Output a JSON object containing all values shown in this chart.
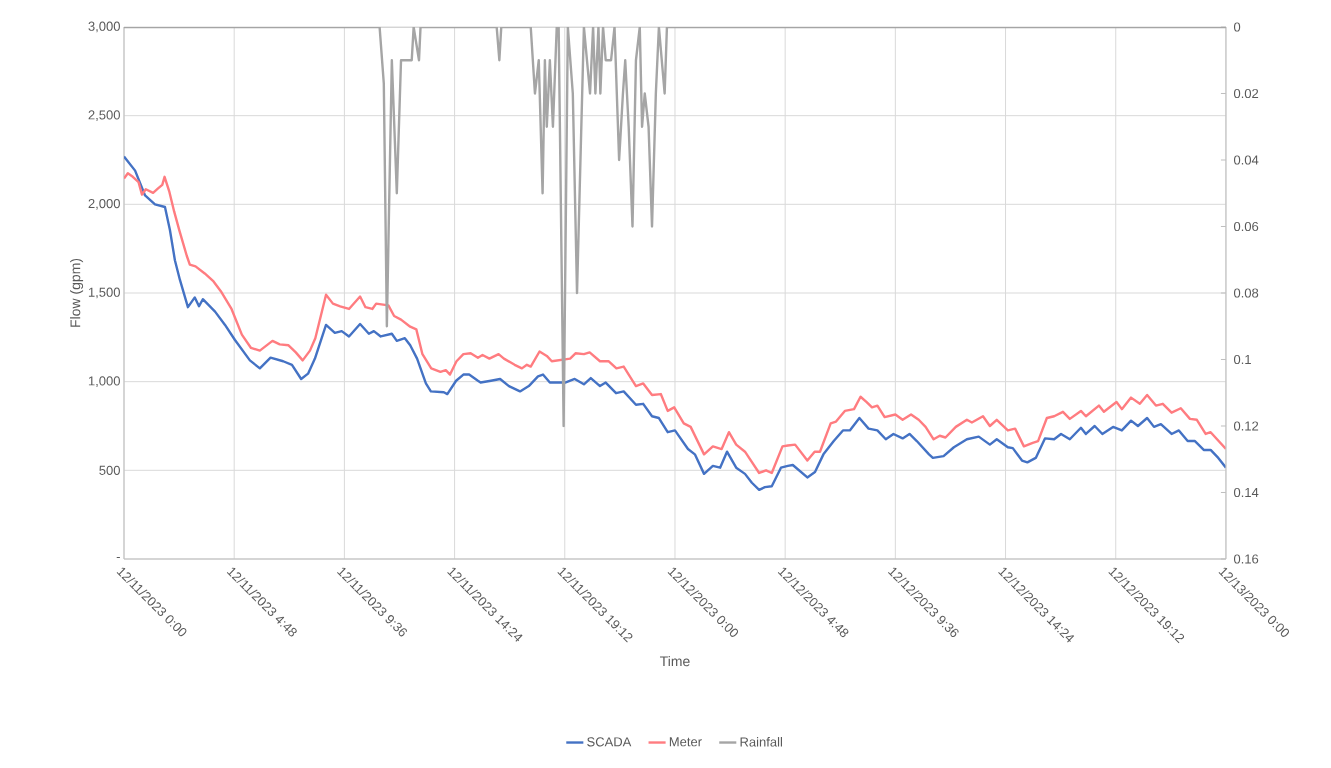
{
  "chart_data": {
    "type": "line",
    "xlabel": "Time",
    "ylabel": "Flow (gpm)",
    "xlim": [
      "2023-12-11T00:00",
      "2023-12-13T00:00"
    ],
    "xticks": [
      {
        "value": "2023-12-11T00:00",
        "label": "12/11/2023 0:00"
      },
      {
        "value": "2023-12-11T04:48",
        "label": "12/11/2023 4:48"
      },
      {
        "value": "2023-12-11T09:36",
        "label": "12/11/2023 9:36"
      },
      {
        "value": "2023-12-11T14:24",
        "label": "12/11/2023 14:24"
      },
      {
        "value": "2023-12-11T19:12",
        "label": "12/11/2023 19:12"
      },
      {
        "value": "2023-12-12T00:00",
        "label": "12/12/2023 0:00"
      },
      {
        "value": "2023-12-12T04:48",
        "label": "12/12/2023 4:48"
      },
      {
        "value": "2023-12-12T09:36",
        "label": "12/12/2023 9:36"
      },
      {
        "value": "2023-12-12T14:24",
        "label": "12/12/2023 14:24"
      },
      {
        "value": "2023-12-12T19:12",
        "label": "12/12/2023 19:12"
      },
      {
        "value": "2023-12-13T00:00",
        "label": "12/13/2023 0:00"
      }
    ],
    "ylim": [
      0,
      3000
    ],
    "yticks": [
      {
        "value": 0,
        "label": "-"
      },
      500,
      {
        "value": 1000,
        "label": "1,000"
      },
      {
        "value": 1500,
        "label": "1,500"
      },
      {
        "value": 2000,
        "label": "2,000"
      },
      {
        "value": 2500,
        "label": "2,500"
      },
      {
        "value": 3000,
        "label": "3,000"
      }
    ],
    "y2lim": [
      0.16,
      0
    ],
    "y2ticks": [
      0,
      0.02,
      0.04,
      0.06,
      0.08,
      0.1,
      0.12,
      0.14,
      0.16
    ],
    "grid": true,
    "legend": "bottom",
    "series": [
      {
        "name": "SCADA",
        "color": "#4472c4",
        "x": [
          "2023-12-11T00:00",
          "2023-12-11T00:29",
          "2023-12-11T00:55",
          "2023-12-11T01:21",
          "2023-12-11T01:47",
          "2023-12-11T02:00",
          "2023-12-11T02:13",
          "2023-12-11T02:26",
          "2023-12-11T02:47",
          "2023-12-11T03:05",
          "2023-12-11T03:16",
          "2023-12-11T03:26",
          "2023-12-11T03:58",
          "2023-12-11T04:24",
          "2023-12-11T04:50",
          "2023-12-11T05:29",
          "2023-12-11T05:55",
          "2023-12-11T06:23",
          "2023-12-11T06:56",
          "2023-12-11T07:19",
          "2023-12-11T07:43",
          "2023-12-11T08:01",
          "2023-12-11T08:19",
          "2023-12-11T08:48",
          "2023-12-11T09:11",
          "2023-12-11T09:29",
          "2023-12-11T09:48",
          "2023-12-11T10:17",
          "2023-12-11T10:40",
          "2023-12-11T10:53",
          "2023-12-11T11:11",
          "2023-12-11T11:40",
          "2023-12-11T11:53",
          "2023-12-11T12:14",
          "2023-12-11T12:28",
          "2023-12-11T12:46",
          "2023-12-11T13:09",
          "2023-12-11T13:22",
          "2023-12-11T13:56",
          "2023-12-11T14:05",
          "2023-12-11T14:28",
          "2023-12-11T14:47",
          "2023-12-11T15:02",
          "2023-12-11T15:25",
          "2023-12-11T15:32",
          "2023-12-11T15:59",
          "2023-12-11T16:23",
          "2023-12-11T16:46",
          "2023-12-11T17:15",
          "2023-12-11T17:38",
          "2023-12-11T18:02",
          "2023-12-11T18:15",
          "2023-12-11T18:33",
          "2023-12-11T19:13",
          "2023-12-11T19:38",
          "2023-12-11T20:02",
          "2023-12-11T20:20",
          "2023-12-11T20:44",
          "2023-12-11T20:59",
          "2023-12-11T21:26",
          "2023-12-11T21:46",
          "2023-12-11T22:18",
          "2023-12-11T22:37",
          "2023-12-11T23:00",
          "2023-12-11T23:18",
          "2023-12-11T23:41",
          "2023-12-12T00:00",
          "2023-12-12T00:34",
          "2023-12-12T00:52",
          "2023-12-12T01:16",
          "2023-12-12T01:39",
          "2023-12-12T01:58",
          "2023-12-12T02:16",
          "2023-12-12T02:40",
          "2023-12-12T03:03",
          "2023-12-12T03:21",
          "2023-12-12T03:40",
          "2023-12-12T03:55",
          "2023-12-12T04:13",
          "2023-12-12T04:37",
          "2023-12-12T04:55",
          "2023-12-12T05:08",
          "2023-12-12T05:46",
          "2023-12-12T06:06",
          "2023-12-12T06:28",
          "2023-12-12T06:55",
          "2023-12-12T07:19",
          "2023-12-12T07:37",
          "2023-12-12T08:02",
          "2023-12-12T08:26",
          "2023-12-12T08:49",
          "2023-12-12T09:11",
          "2023-12-12T09:31",
          "2023-12-12T09:55",
          "2023-12-12T10:13",
          "2023-12-12T10:32",
          "2023-12-12T11:04",
          "2023-12-12T11:14",
          "2023-12-12T11:42",
          "2023-12-12T12:09",
          "2023-12-12T12:43",
          "2023-12-12T13:14",
          "2023-12-12T13:43",
          "2023-12-12T14:01",
          "2023-12-12T14:30",
          "2023-12-12T14:43",
          "2023-12-12T15:07",
          "2023-12-12T15:21",
          "2023-12-12T15:43",
          "2023-12-12T16:07",
          "2023-12-12T16:31",
          "2023-12-12T16:49",
          "2023-12-12T17:12",
          "2023-12-12T17:41",
          "2023-12-12T17:54",
          "2023-12-12T18:17",
          "2023-12-12T18:37",
          "2023-12-12T19:05",
          "2023-12-12T19:28",
          "2023-12-12T19:52",
          "2023-12-12T20:10",
          "2023-12-12T20:34",
          "2023-12-12T20:52",
          "2023-12-12T21:10",
          "2023-12-12T21:38",
          "2023-12-12T21:57",
          "2023-12-12T22:20",
          "2023-12-12T22:39",
          "2023-12-12T23:02",
          "2023-12-12T23:20",
          "2023-12-12T23:40",
          "2023-12-13T00:00"
        ],
        "values": [
          2270,
          2190,
          2050,
          2000,
          1985,
          1855,
          1685,
          1575,
          1420,
          1475,
          1425,
          1465,
          1395,
          1320,
          1235,
          1120,
          1075,
          1135,
          1115,
          1095,
          1015,
          1045,
          1130,
          1320,
          1275,
          1285,
          1255,
          1325,
          1270,
          1285,
          1255,
          1270,
          1230,
          1245,
          1205,
          1130,
          990,
          945,
          940,
          930,
          1005,
          1040,
          1040,
          1005,
          995,
          1005,
          1015,
          975,
          945,
          975,
          1030,
          1040,
          995,
          995,
          1015,
          985,
          1020,
          975,
          995,
          935,
          945,
          870,
          875,
          805,
          795,
          715,
          725,
          620,
          590,
          480,
          525,
          515,
          605,
          515,
          480,
          430,
          390,
          405,
          410,
          515,
          525,
          530,
          460,
          490,
          590,
          665,
          725,
          725,
          795,
          735,
          725,
          675,
          705,
          680,
          705,
          665,
          590,
          570,
          580,
          630,
          675,
          690,
          645,
          675,
          630,
          625,
          555,
          545,
          570,
          680,
          675,
          705,
          675,
          740,
          705,
          750,
          705,
          745,
          725,
          780,
          750,
          795,
          745,
          760,
          705,
          725,
          665,
          665,
          615,
          615,
          570,
          515
        ]
      },
      {
        "name": "Meter",
        "color": "#ff7c80",
        "x": [
          "2023-12-11T00:00",
          "2023-12-11T00:10",
          "2023-12-11T00:23",
          "2023-12-11T00:38",
          "2023-12-11T00:47",
          "2023-12-11T00:57",
          "2023-12-11T01:16",
          "2023-12-11T01:29",
          "2023-12-11T01:40",
          "2023-12-11T01:46",
          "2023-12-11T01:58",
          "2023-12-11T02:11",
          "2023-12-11T02:25",
          "2023-12-11T02:44",
          "2023-12-11T02:52",
          "2023-12-11T03:07",
          "2023-12-11T03:31",
          "2023-12-11T03:54",
          "2023-12-11T04:13",
          "2023-12-11T04:41",
          "2023-12-11T05:08",
          "2023-12-11T05:32",
          "2023-12-11T05:55",
          "2023-12-11T06:28",
          "2023-12-11T06:47",
          "2023-12-11T07:10",
          "2023-12-11T07:29",
          "2023-12-11T07:47",
          "2023-12-11T08:06",
          "2023-12-11T08:20",
          "2023-12-11T08:48",
          "2023-12-11T09:06",
          "2023-12-11T09:25",
          "2023-12-11T09:48",
          "2023-12-11T10:17",
          "2023-12-11T10:31",
          "2023-12-11T10:49",
          "2023-12-11T10:59",
          "2023-12-11T11:31",
          "2023-12-11T11:46",
          "2023-12-11T12:04",
          "2023-12-11T12:28",
          "2023-12-11T12:44",
          "2023-12-11T13:00",
          "2023-12-11T13:23",
          "2023-12-11T13:47",
          "2023-12-11T14:01",
          "2023-12-11T14:12",
          "2023-12-11T14:29",
          "2023-12-11T14:47",
          "2023-12-11T15:06",
          "2023-12-11T15:25",
          "2023-12-11T15:37",
          "2023-12-11T15:55",
          "2023-12-11T16:19",
          "2023-12-11T16:33",
          "2023-12-11T17:01",
          "2023-12-11T17:20",
          "2023-12-11T17:33",
          "2023-12-11T17:43",
          "2023-12-11T18:06",
          "2023-12-11T18:25",
          "2023-12-11T18:38",
          "2023-12-11T19:26",
          "2023-12-11T19:40",
          "2023-12-11T20:02",
          "2023-12-11T20:17",
          "2023-12-11T20:44",
          "2023-12-11T21:07",
          "2023-12-11T21:27",
          "2023-12-11T21:46",
          "2023-12-11T22:18",
          "2023-12-11T22:37",
          "2023-12-11T23:00",
          "2023-12-11T23:23",
          "2023-12-11T23:41",
          "2023-12-11T23:58",
          "2023-12-12T00:23",
          "2023-12-12T00:41",
          "2023-12-12T01:16",
          "2023-12-12T01:39",
          "2023-12-12T02:02",
          "2023-12-12T02:21",
          "2023-12-12T02:40",
          "2023-12-12T03:03",
          "2023-12-12T03:40",
          "2023-12-12T03:58",
          "2023-12-12T04:13",
          "2023-12-12T04:41",
          "2023-12-12T04:55",
          "2023-12-12T05:14",
          "2023-12-12T05:46",
          "2023-12-12T06:05",
          "2023-12-12T06:19",
          "2023-12-12T06:47",
          "2023-12-12T07:01",
          "2023-12-12T07:24",
          "2023-12-12T07:48",
          "2023-12-12T08:05",
          "2023-12-12T08:21",
          "2023-12-12T08:35",
          "2023-12-12T08:49",
          "2023-12-12T09:08",
          "2023-12-12T09:36",
          "2023-12-12T09:55",
          "2023-12-12T10:17",
          "2023-12-12T10:37",
          "2023-12-12T10:55",
          "2023-12-12T11:16",
          "2023-12-12T11:32",
          "2023-12-12T11:47",
          "2023-12-12T12:14",
          "2023-12-12T12:43",
          "2023-12-12T12:56",
          "2023-12-12T13:25",
          "2023-12-12T13:43",
          "2023-12-12T14:01",
          "2023-12-12T14:30",
          "2023-12-12T14:49",
          "2023-12-12T15:12",
          "2023-12-12T15:35",
          "2023-12-12T15:49",
          "2023-12-12T16:12",
          "2023-12-12T16:31",
          "2023-12-12T16:54",
          "2023-12-12T17:12",
          "2023-12-12T17:41",
          "2023-12-12T17:54",
          "2023-12-12T18:28",
          "2023-12-12T18:41",
          "2023-12-12T19:14",
          "2023-12-12T19:28",
          "2023-12-12T19:52",
          "2023-12-12T20:15",
          "2023-12-12T20:34",
          "2023-12-12T20:57",
          "2023-12-12T21:15",
          "2023-12-12T21:38",
          "2023-12-12T22:02",
          "2023-12-12T22:26",
          "2023-12-12T22:44",
          "2023-12-12T23:07",
          "2023-12-12T23:20",
          "2023-12-13T00:00"
        ],
        "values": [
          2145,
          2175,
          2155,
          2125,
          2055,
          2085,
          2065,
          2090,
          2110,
          2155,
          2075,
          1960,
          1850,
          1710,
          1660,
          1650,
          1610,
          1565,
          1510,
          1410,
          1265,
          1190,
          1175,
          1230,
          1210,
          1205,
          1165,
          1120,
          1175,
          1245,
          1490,
          1440,
          1425,
          1410,
          1480,
          1420,
          1410,
          1440,
          1430,
          1370,
          1350,
          1310,
          1295,
          1155,
          1075,
          1055,
          1065,
          1040,
          1115,
          1155,
          1160,
          1135,
          1150,
          1130,
          1155,
          1130,
          1095,
          1075,
          1095,
          1085,
          1170,
          1145,
          1115,
          1130,
          1160,
          1155,
          1165,
          1115,
          1115,
          1075,
          1085,
          975,
          990,
          925,
          930,
          835,
          855,
          765,
          745,
          590,
          635,
          620,
          715,
          645,
          605,
          485,
          500,
          485,
          635,
          640,
          645,
          555,
          605,
          605,
          765,
          775,
          835,
          845,
          915,
          885,
          855,
          865,
          800,
          815,
          785,
          815,
          785,
          745,
          675,
          695,
          685,
          745,
          785,
          770,
          805,
          750,
          785,
          725,
          735,
          635,
          655,
          665,
          795,
          805,
          830,
          790,
          835,
          805,
          865,
          830,
          885,
          845,
          910,
          875,
          925,
          865,
          875,
          825,
          850,
          790,
          785,
          705,
          715,
          620
        ]
      },
      {
        "name": "Rainfall",
        "color": "#a5a5a5",
        "axis": "y2",
        "x": [
          "2023-12-11T00:00",
          "2023-12-11T11:08",
          "2023-12-11T11:19",
          "2023-12-11T11:27",
          "2023-12-11T11:40",
          "2023-12-11T11:53",
          "2023-12-11T12:04",
          "2023-12-11T12:32",
          "2023-12-11T12:37",
          "2023-12-11T12:51",
          "2023-12-11T12:55",
          "2023-12-11T16:14",
          "2023-12-11T16:21",
          "2023-12-11T16:26",
          "2023-12-11T17:43",
          "2023-12-11T17:54",
          "2023-12-11T18:04",
          "2023-12-11T18:14",
          "2023-12-11T18:20",
          "2023-12-11T18:25",
          "2023-12-11T18:33",
          "2023-12-11T18:41",
          "2023-12-11T18:51",
          "2023-12-11T18:56",
          "2023-12-11T19:09",
          "2023-12-11T19:20",
          "2023-12-11T19:33",
          "2023-12-11T19:44",
          "2023-12-11T20:02",
          "2023-12-11T20:18",
          "2023-12-11T20:26",
          "2023-12-11T20:32",
          "2023-12-11T20:40",
          "2023-12-11T20:45",
          "2023-12-11T20:52",
          "2023-12-11T20:59",
          "2023-12-11T21:13",
          "2023-12-11T21:22",
          "2023-12-11T21:34",
          "2023-12-11T21:44",
          "2023-12-11T21:50",
          "2023-12-11T21:59",
          "2023-12-11T22:09",
          "2023-12-11T22:18",
          "2023-12-11T22:28",
          "2023-12-11T22:34",
          "2023-12-11T22:41",
          "2023-12-11T22:51",
          "2023-12-11T23:00",
          "2023-12-11T23:10",
          "2023-12-11T23:18",
          "2023-12-11T23:33",
          "2023-12-11T23:39",
          "2023-12-13T00:00"
        ],
        "values": [
          0,
          0,
          0.017,
          0.09,
          0.01,
          0.05,
          0.01,
          0.01,
          0,
          0.01,
          0,
          0,
          0.01,
          0,
          0,
          0.02,
          0.01,
          0.05,
          0.01,
          0.03,
          0.01,
          0.03,
          0,
          0,
          0.12,
          0,
          0.02,
          0.08,
          0,
          0.02,
          0,
          0.02,
          0,
          0.02,
          0,
          0.01,
          0.01,
          0,
          0.04,
          0.02,
          0.01,
          0.03,
          0.06,
          0.01,
          0,
          0.03,
          0.02,
          0.03,
          0.06,
          0.02,
          0,
          0.02,
          0,
          0
        ]
      }
    ]
  }
}
